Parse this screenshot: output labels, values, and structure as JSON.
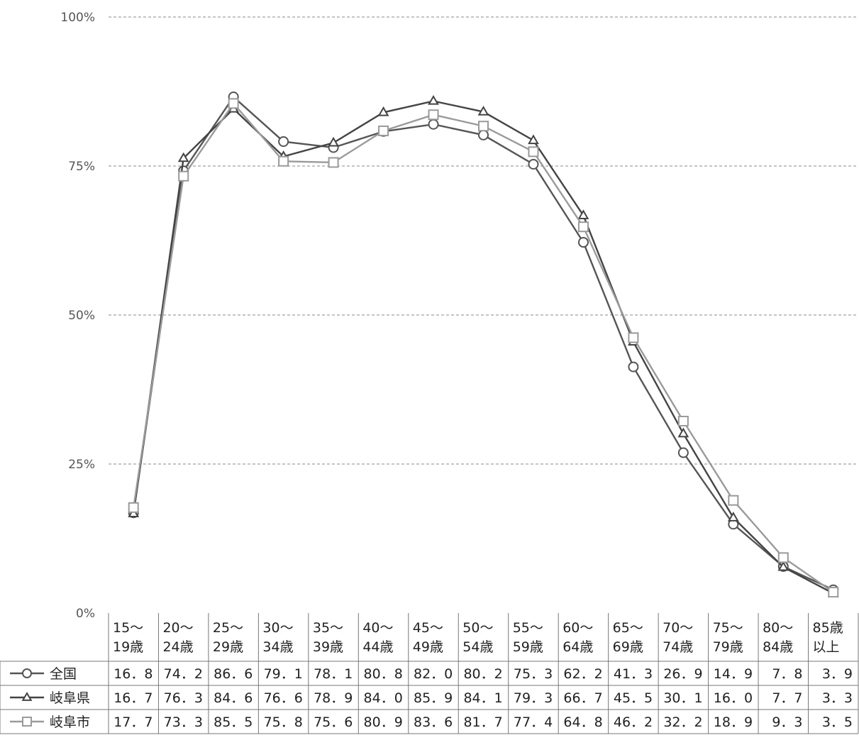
{
  "chart_data": {
    "type": "line",
    "ylim": [
      0,
      100
    ],
    "yticks": [
      "0%",
      "25%",
      "50%",
      "75%",
      "100%"
    ],
    "grid": true,
    "legend": "data-table-left",
    "categories": [
      [
        "15～",
        "19歳"
      ],
      [
        "20～",
        "24歳"
      ],
      [
        "25～",
        "29歳"
      ],
      [
        "30～",
        "34歳"
      ],
      [
        "35～",
        "39歳"
      ],
      [
        "40～",
        "44歳"
      ],
      [
        "45～",
        "49歳"
      ],
      [
        "50～",
        "54歳"
      ],
      [
        "55～",
        "59歳"
      ],
      [
        "60～",
        "64歳"
      ],
      [
        "65～",
        "69歳"
      ],
      [
        "70～",
        "74歳"
      ],
      [
        "75～",
        "79歳"
      ],
      [
        "80～",
        "84歳"
      ],
      [
        "85歳",
        "以上"
      ]
    ],
    "series": [
      {
        "name": "全国",
        "marker": "circle",
        "color": "#555555",
        "values": [
          16.8,
          74.2,
          86.6,
          79.1,
          78.1,
          80.8,
          82.0,
          80.2,
          75.3,
          62.2,
          41.3,
          26.9,
          14.9,
          7.8,
          3.9
        ],
        "labels": [
          "16．8",
          "74．2",
          "86．6",
          "79．1",
          "78．1",
          "80．8",
          "82．0",
          "80．2",
          "75．3",
          "62．2",
          "41．3",
          "26．9",
          "14．9",
          "7．8",
          "3．9"
        ]
      },
      {
        "name": "岐阜県",
        "marker": "triangle",
        "color": "#444444",
        "values": [
          16.7,
          76.3,
          84.6,
          76.6,
          78.9,
          84.0,
          85.9,
          84.1,
          79.3,
          66.7,
          45.5,
          30.1,
          16.0,
          7.7,
          3.3
        ],
        "labels": [
          "16．7",
          "76．3",
          "84．6",
          "76．6",
          "78．9",
          "84．0",
          "85．9",
          "84．1",
          "79．3",
          "66．7",
          "45．5",
          "30．1",
          "16．0",
          "7．7",
          "3．3"
        ]
      },
      {
        "name": "岐阜市",
        "marker": "square",
        "color": "#9a9a9a",
        "values": [
          17.7,
          73.3,
          85.5,
          75.8,
          75.6,
          80.9,
          83.6,
          81.7,
          77.4,
          64.8,
          46.2,
          32.2,
          18.9,
          9.3,
          3.5
        ],
        "labels": [
          "17．7",
          "73．3",
          "85．5",
          "75．8",
          "75．6",
          "80．9",
          "83．6",
          "81．7",
          "77．4",
          "64．8",
          "46．2",
          "32．2",
          "18．9",
          "9．3",
          "3．5"
        ]
      }
    ]
  }
}
